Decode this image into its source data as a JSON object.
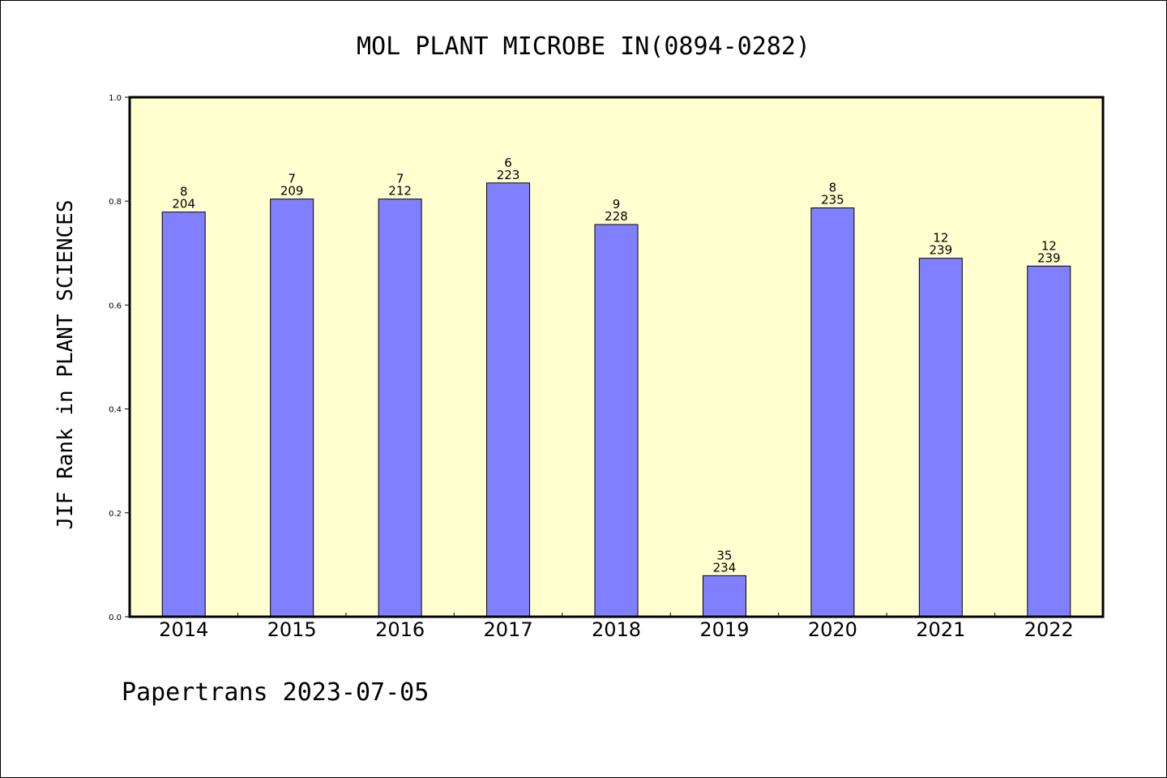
{
  "chart_data": {
    "type": "bar",
    "title": "MOL PLANT MICROBE IN(0894-0282)",
    "ylabel": "JIF Rank in PLANT SCIENCES",
    "xlabel": "",
    "ylim": [
      0,
      1.0
    ],
    "yticks": [
      "0.0",
      "0.2",
      "0.4",
      "0.6",
      "0.8",
      "1.0"
    ],
    "categories": [
      "2014",
      "2015",
      "2016",
      "2017",
      "2018",
      "2019",
      "2020",
      "2021",
      "2022"
    ],
    "values": [
      0.779,
      0.804,
      0.804,
      0.835,
      0.755,
      0.079,
      0.787,
      0.69,
      0.675
    ],
    "rank": [
      "8",
      "7",
      "7",
      "6",
      "9",
      "35",
      "8",
      "12",
      "12"
    ],
    "total": [
      "204",
      "209",
      "212",
      "223",
      "228",
      "234",
      "235",
      "239",
      "239"
    ],
    "grid": false,
    "plot_background": "#ffffd0",
    "bar_color": "#8080ff"
  },
  "footer": "Papertrans 2023-07-05"
}
